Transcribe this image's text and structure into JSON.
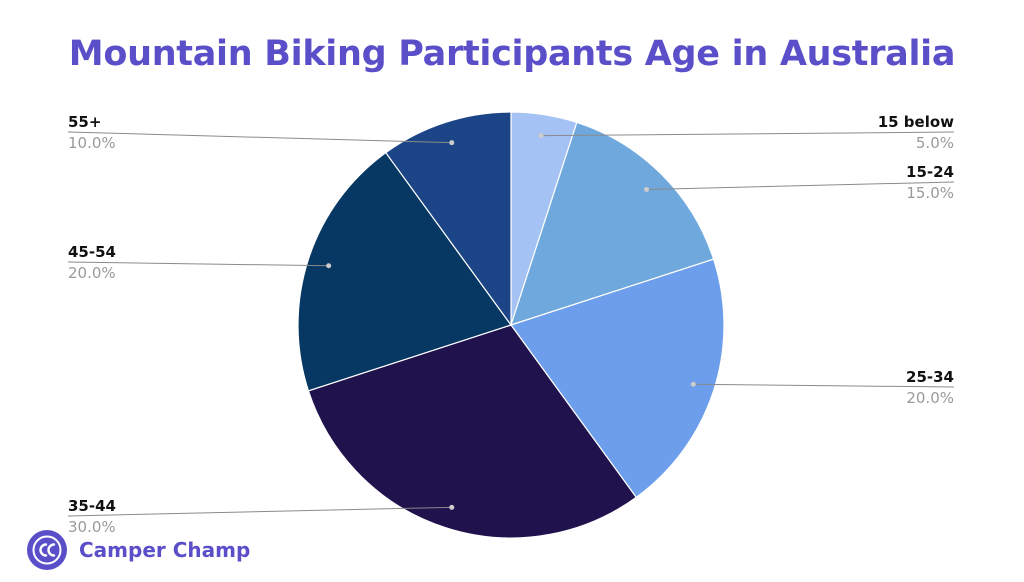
{
  "title": "Mountain Biking Participants Age in Australia",
  "brand": {
    "name": "Camper Champ",
    "logo_icon": "cc-logo-icon",
    "color": "#5b4fc9"
  },
  "chart_data": {
    "type": "pie",
    "title": "Mountain Biking Participants Age in Australia",
    "start_angle_deg": 0,
    "direction": "clockwise",
    "slices": [
      {
        "label": "15 below",
        "value": 5.0,
        "display": "5.0%",
        "color": "#a4c2f4",
        "side": "right"
      },
      {
        "label": "15-24",
        "value": 15.0,
        "display": "15.0%",
        "color": "#6fa8dc",
        "side": "right"
      },
      {
        "label": "25-34",
        "value": 20.0,
        "display": "20.0%",
        "color": "#6d9eeb",
        "side": "right"
      },
      {
        "label": "35-44",
        "value": 30.0,
        "display": "30.0%",
        "color": "#20124d",
        "side": "left"
      },
      {
        "label": "45-54",
        "value": 20.0,
        "display": "20.0%",
        "color": "#073763",
        "side": "left"
      },
      {
        "label": "55+",
        "value": 10.0,
        "display": "10.0%",
        "color": "#1c4587",
        "side": "left"
      }
    ]
  }
}
